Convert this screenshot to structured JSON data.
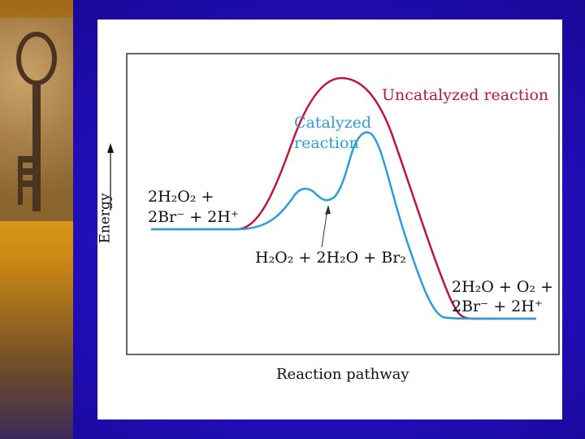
{
  "diagram": {
    "y_axis_label": "Energy",
    "x_axis_label": "Reaction pathway",
    "uncatalyzed_label": "Uncatalyzed reaction",
    "catalyzed_label_line1": "Catalyzed",
    "catalyzed_label_line2": "reaction",
    "reactants_line1": "2H₂O₂ +",
    "reactants_line2": "2Br⁻ + 2H⁺",
    "intermediate": "H₂O₂ + 2H₂O + Br₂",
    "products_line1": "2H₂O + O₂  +",
    "products_line2": "2Br⁻ + 2H⁺",
    "colors": {
      "uncatalyzed": "#c0143c",
      "catalyzed": "#2a9fd6",
      "background": "#1c0aa8"
    }
  }
}
